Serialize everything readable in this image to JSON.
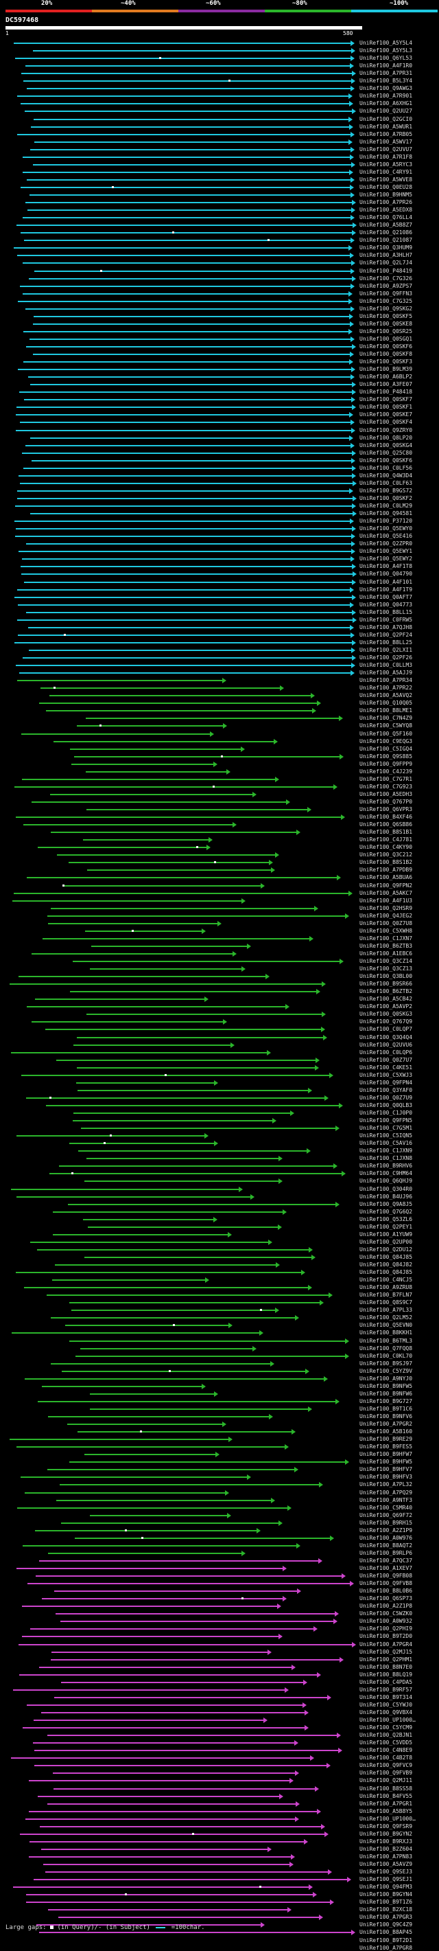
{
  "legend": {
    "marks": [
      "20%",
      "~40%",
      "~60%",
      "~80%",
      "~100%"
    ],
    "colors": [
      "#e02020",
      "#e07a20",
      "#8a2ba0",
      "#2bb52b",
      "#1fc8e0"
    ]
  },
  "query_id": "DC597468",
  "ruler": {
    "start": "1",
    "end": "580"
  },
  "cyan_labels": [
    "UniRef100_A5Y5L4",
    "UniRef100_A5Y5L3",
    "UniRef100_Q6YL53",
    "UniRef100_A4F1R0",
    "UniRef100_A7PR31",
    "UniRef100_B5L3Y4",
    "UniRef100_Q9AWG3",
    "UniRef100_A7R901",
    "UniRef100_A6XHG1",
    "UniRef100_Q2UU27",
    "UniRef100_Q2GCI0",
    "UniRef100_A5WUR1",
    "UniRef100_A7RB05",
    "UniRef100_A5WV17",
    "UniRef100_Q2UVU7",
    "UniRef100_A7R1F8",
    "UniRef100_A5RYC3",
    "UniRef100_C4RY91",
    "UniRef100_A5WVE8",
    "UniRef100_Q0EU28",
    "UniRef100_B9HNM5",
    "UniRef100_A7PR26",
    "UniRef100_A5EDX8",
    "UniRef100_Q76LL4",
    "UniRef100_A5B8Z7",
    "UniRef100_Q21086",
    "UniRef100_Q21087",
    "UniRef100_Q3HUM9",
    "UniRef100_A3HLH7",
    "UniRef100_Q2L7J4",
    "UniRef100_P48419",
    "UniRef100_C7G326",
    "UniRef100_A9ZPS7",
    "UniRef100_Q9FFN3",
    "UniRef100_C7G325",
    "UniRef100_Q9SKG2",
    "UniRef100_Q0SKF5",
    "UniRef100_Q0SKE8",
    "UniRef100_Q0SR25",
    "UniRef100_Q0SGQ1",
    "UniRef100_Q0SKF6",
    "UniRef100_Q0SKF8",
    "UniRef100_Q0SKF3",
    "UniRef100_B9LM39",
    "UniRef100_A6BLP2",
    "UniRef100_A3FE07",
    "UniRef100_P48418",
    "UniRef100_Q0SKF7",
    "UniRef100_Q0SKF1",
    "UniRef100_Q0SKE7",
    "UniRef100_Q0SKF4",
    "UniRef100_Q9ZRY0",
    "UniRef100_Q8LP20",
    "UniRef100_Q0SKG4",
    "UniRef100_Q25C80",
    "UniRef100_Q0SKF6",
    "UniRef100_C0LF56",
    "UniRef100_Q4W3D4",
    "UniRef100_C0LF63",
    "UniRef100_B9GS72",
    "UniRef100_Q0SKF2",
    "UniRef100_C0LM29",
    "UniRef100_Q94581",
    "UniRef100_P37120",
    "UniRef100_Q5EWY0",
    "UniRef100_Q5E416",
    "UniRef100_Q2ZPR0",
    "UniRef100_Q5EWY1",
    "UniRef100_Q5EWY2",
    "UniRef100_A4F1T8",
    "UniRef100_Q04790",
    "UniRef100_A4F101",
    "UniRef100_A4F1T9",
    "UniRef100_Q0AFT7",
    "UniRef100_Q04773",
    "UniRef100_B8LL15",
    "UniRef100_C0FRW5",
    "UniRef100_A7QJH8",
    "UniRef100_Q2PF24",
    "UniRef100_B8LL25",
    "UniRef100_Q2LXI1",
    "UniRef100_Q2PF26",
    "UniRef100_C0LLM3",
    "UniRef100_A5AJJ9"
  ],
  "green_labels": [
    "UniRef100_A7PR34",
    "UniRef100_A7PR22",
    "UniRef100_A5AVQ2",
    "UniRef100_Q10Q05",
    "UniRef100_B8LME1",
    "UniRef100_C7N4Z9",
    "UniRef100_C5WYQ8",
    "UniRef100_Q5F160",
    "UniRef100_C9EQG3",
    "UniRef100_C5IGQ4",
    "UniRef100_Q9S885",
    "UniRef100_Q9FPP9",
    "UniRef100_C4J239",
    "UniRef100_C7G7R1",
    "UniRef100_C7G923",
    "UniRef100_A5EDH3",
    "UniRef100_Q767P0",
    "UniRef100_Q6VPR3",
    "UniRef100_B4XF46",
    "UniRef100_Q6SB86",
    "UniRef100_B8S1B1",
    "UniRef100_C4J781",
    "UniRef100_C4KY90",
    "UniRef100_Q3C212",
    "UniRef100_B8S1B2",
    "UniRef100_A7PDB9",
    "UniRef100_A5BUA6",
    "UniRef100_Q9FPN2",
    "UniRef100_A5AKC7",
    "UniRef100_A4F1U3",
    "UniRef100_Q2HSR9",
    "UniRef100_Q4JEG2",
    "UniRef100_Q0Z7U8",
    "UniRef100_C5XWH8",
    "UniRef100_C1JXN7",
    "UniRef100_B6ZTB3",
    "UniRef100_A1EBC6",
    "UniRef100_Q3CZ14",
    "UniRef100_Q3CZ13",
    "UniRef100_Q3BL00",
    "UniRef100_B9SR66",
    "UniRef100_B6ZTB2",
    "UniRef100_A5CB42",
    "UniRef100_A5AVP2",
    "UniRef100_Q0SKG3",
    "UniRef100_Q767Q9",
    "UniRef100_C0LQP7",
    "UniRef100_Q3Q4Q4",
    "UniRef100_Q2UVU6",
    "UniRef100_C0LQP6",
    "UniRef100_Q0Z7U7",
    "UniRef100_C4KE51",
    "UniRef100_C5XWJ3",
    "UniRef100_Q9FPN4",
    "UniRef100_Q3YAF0",
    "UniRef100_Q0Z7U9",
    "UniRef100_Q0QLB3",
    "UniRef100_C1J0P0",
    "UniRef100_Q9FPN5",
    "UniRef100_C7G5M1",
    "UniRef100_C5IQN5",
    "UniRef100_C5AV16",
    "UniRef100_C1JXN9",
    "UniRef100_C1JXN8",
    "UniRef100_B9RHV6",
    "UniRef100_C9HM64",
    "UniRef100_Q6QHJ9",
    "UniRef100_Q304R0",
    "UniRef100_B4UJ96",
    "UniRef100_Q9A8J5",
    "UniRef100_Q7G6Q2",
    "UniRef100_Q53ZL6",
    "UniRef100_Q2PEY1",
    "UniRef100_A1YUW9",
    "UniRef100_Q2UP00",
    "UniRef100_Q2DU12",
    "UniRef100_Q84J85",
    "UniRef100_Q84J82",
    "UniRef100_Q84J85",
    "UniRef100_C4NCJ5",
    "UniRef100_A9ZRU8",
    "UniRef100_B7FLN7",
    "UniRef100_Q8S9C7",
    "UniRef100_A7PL33",
    "UniRef100_Q2LM52",
    "UniRef100_Q5EVN0",
    "UniRef100_B8KKH1",
    "UniRef100_B6TML3",
    "UniRef100_Q7FQQ8",
    "UniRef100_C0KL70",
    "UniRef100_B9SJ97",
    "UniRef100_C5YZ9V",
    "UniRef100_A9NYJ0",
    "UniRef100_B9NFW5",
    "UniRef100_B9NFW6",
    "UniRef100_B9G727",
    "UniRef100_B9T1C6",
    "UniRef100_B9NFV6",
    "UniRef100_A7PGR2",
    "UniRef100_A5B160",
    "UniRef100_B9RE29",
    "UniRef100_B9FES5",
    "UniRef100_B9HFW7",
    "UniRef100_B9HFW5",
    "UniRef100_B9HFV7",
    "UniRef100_B9HFV3",
    "UniRef100_A7PL32",
    "UniRef100_A7PQ29",
    "UniRef100_A9NTF3",
    "UniRef100_C5MR40",
    "UniRef100_Q69F72",
    "UniRef100_B9RH15",
    "UniRef100_A2Z1P9",
    "UniRef100_A0W976",
    "UniRef100_B8AQT2",
    "UniRef100_B9RLP6"
  ],
  "magenta_labels": [
    "UniRef100_A7QC37",
    "UniRef100_A1XEV7",
    "UniRef100_Q9FB08",
    "UniRef100_Q9FVB8",
    "UniRef100_B8L0B6",
    "UniRef100_Q6SP73",
    "UniRef100_A2Z1P8",
    "UniRef100_C5WZK0",
    "UniRef100_A0W932",
    "UniRef100_Q2PHI9",
    "UniRef100_B9T2D0",
    "UniRef100_A7PGR4",
    "UniRef100_Q2MJ15",
    "UniRef100_Q2PHM1",
    "UniRef100_B8N7E0",
    "UniRef100_B8LQ19",
    "UniRef100_C4PDA5",
    "UniRef100_B9RF57",
    "UniRef100_B9T314",
    "UniRef100_C5YWJ0",
    "UniRef100_Q9VBX4",
    "UniRef100_UP1000…",
    "UniRef100_C5YCM9",
    "UniRef100_Q2BJN1",
    "UniRef100_C5VDD5",
    "UniRef100_C4N8E9",
    "UniRef100_C4B2T8",
    "UniRef100_Q9FVC9",
    "UniRef100_Q9FVB9",
    "UniRef100_Q2MJ11",
    "UniRef100_B8SS58",
    "UniRef100_B4FV55",
    "UniRef100_A7PGR1",
    "UniRef100_A5B8Y5",
    "UniRef100_UP1000…",
    "UniRef100_Q9FSR9",
    "UniRef100_B9GYN2",
    "UniRef100_B9RXJ3",
    "UniRef100_B2Z604",
    "UniRef100_A7PN83",
    "UniRef100_A5AVZ9",
    "UniRef100_Q9SEJ3",
    "UniRef100_Q9SEJ1",
    "UniRef100_Q94FM3",
    "UniRef100_B9GYN4",
    "UniRef100_B9T1Z6",
    "UniRef100_B2XC18",
    "UniRef100_A7PGR3",
    "UniRef100_Q9C4Z9",
    "UniRef100_B8AP45",
    "UniRef100_B9T2D1",
    "UniRef100_A7PGR8"
  ],
  "footer": {
    "large_gaps": "Large gaps:",
    "in_query": "(in Query)/- (in Subject)",
    "scale": "=100char."
  },
  "colors": {
    "cyan": "#1fc8e0",
    "green": "#2bb52b",
    "magenta": "#cc44cc"
  }
}
